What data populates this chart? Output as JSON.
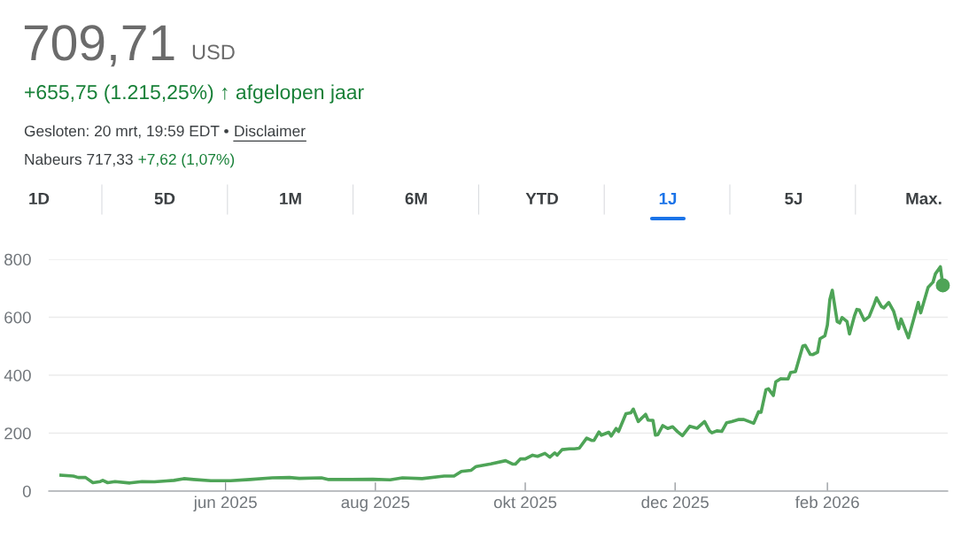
{
  "chart_data": {
    "type": "line",
    "title": "709,71",
    "annotations": [
      "USD",
      "+655,75 (1.215,25%) ↑ afgelopen jaar",
      "Gesloten: 20 mrt, 19:59 EDT •",
      "Disclaimer",
      "Nabeurs 717,33",
      "+7,62 (1,07%)",
      "1D",
      "5D",
      "1M",
      "6M",
      "YTD",
      "1J",
      "5J",
      "Max."
    ],
    "xlim": [
      "2025-03-21",
      "2026-03-22"
    ],
    "xticks": [
      {
        "value": "2025-06-01",
        "label": "jun 2025"
      },
      {
        "value": "2025-08-01",
        "label": "aug 2025"
      },
      {
        "value": "2025-10-01",
        "label": "okt 2025"
      },
      {
        "value": "2025-12-01",
        "label": "dec 2025"
      },
      {
        "value": "2026-02-01",
        "label": "feb 2026"
      }
    ],
    "ylim": [
      0,
      800
    ],
    "yticks": [
      0,
      200,
      400,
      600,
      800
    ],
    "grid": "y",
    "legend": false,
    "line_style": "solid",
    "series": [
      {
        "color": "#4ea457",
        "marker": "none",
        "x": [
          "2025-03-26",
          "2025-03-31",
          "2025-04-02",
          "2025-04-05",
          "2025-04-08",
          "2025-04-11",
          "2025-04-12",
          "2025-04-14",
          "2025-04-17",
          "2025-04-23",
          "2025-04-28",
          "2025-05-03",
          "2025-05-08",
          "2025-05-11",
          "2025-05-15",
          "2025-05-19",
          "2025-05-26",
          "2025-06-03",
          "2025-06-11",
          "2025-06-20",
          "2025-06-27",
          "2025-07-01",
          "2025-07-10",
          "2025-07-13",
          "2025-07-22",
          "2025-07-31",
          "2025-08-07",
          "2025-08-12",
          "2025-08-20",
          "2025-08-29",
          "2025-09-02",
          "2025-09-05",
          "2025-09-09",
          "2025-09-11",
          "2025-09-17",
          "2025-09-23",
          "2025-09-26",
          "2025-09-27",
          "2025-09-29",
          "2025-10-01",
          "2025-10-04",
          "2025-10-06",
          "2025-10-09",
          "2025-10-11",
          "2025-10-13",
          "2025-10-14",
          "2025-10-16",
          "2025-10-19",
          "2025-10-21",
          "2025-10-23",
          "2025-10-26",
          "2025-10-28",
          "2025-10-29",
          "2025-10-31",
          "2025-11-01",
          "2025-11-04",
          "2025-11-05",
          "2025-11-07",
          "2025-11-08",
          "2025-11-11",
          "2025-11-13",
          "2025-11-14",
          "2025-11-16",
          "2025-11-19",
          "2025-11-20",
          "2025-11-22",
          "2025-11-23",
          "2025-11-24",
          "2025-11-26",
          "2025-11-28",
          "2025-11-30",
          "2025-12-02",
          "2025-12-04",
          "2025-12-07",
          "2025-12-10",
          "2025-12-13",
          "2025-12-15",
          "2025-12-16",
          "2025-12-18",
          "2025-12-20",
          "2025-12-22",
          "2025-12-24",
          "2025-12-27",
          "2025-12-29",
          "2026-01-02",
          "2026-01-04",
          "2026-01-05",
          "2026-01-07",
          "2026-01-08",
          "2026-01-10",
          "2026-01-11",
          "2026-01-13",
          "2026-01-16",
          "2026-01-17",
          "2026-01-19",
          "2026-01-22",
          "2026-01-23",
          "2026-01-25",
          "2026-01-26",
          "2026-01-28",
          "2026-01-29",
          "2026-01-31",
          "2026-02-01",
          "2026-02-02",
          "2026-02-03",
          "2026-02-05",
          "2026-02-06",
          "2026-02-07",
          "2026-02-09",
          "2026-02-10",
          "2026-02-12",
          "2026-02-13",
          "2026-02-14",
          "2026-02-16",
          "2026-02-18",
          "2026-02-20",
          "2026-02-21",
          "2026-02-23",
          "2026-02-24",
          "2026-02-26",
          "2026-02-28",
          "2026-03-02",
          "2026-03-03",
          "2026-03-06",
          "2026-03-08",
          "2026-03-10",
          "2026-03-11",
          "2026-03-14",
          "2026-03-16",
          "2026-03-17",
          "2026-03-19",
          "2026-03-20"
        ],
        "values": [
          55,
          52,
          47,
          47,
          29,
          33,
          37,
          29,
          33,
          28,
          33,
          32,
          35,
          37,
          43,
          40,
          36,
          36,
          40,
          46,
          47,
          44,
          46,
          40,
          40,
          41,
          39,
          46,
          43,
          52,
          52,
          68,
          72,
          85,
          94,
          105,
          93,
          93,
          111,
          111,
          124,
          120,
          130,
          117,
          132,
          124,
          143,
          146,
          146,
          148,
          183,
          175,
          175,
          204,
          193,
          203,
          190,
          216,
          206,
          267,
          270,
          283,
          240,
          265,
          245,
          244,
          193,
          195,
          226,
          216,
          222,
          205,
          191,
          224,
          217,
          240,
          208,
          201,
          208,
          206,
          236,
          240,
          247,
          247,
          234,
          274,
          272,
          350,
          353,
          330,
          377,
          388,
          387,
          409,
          412,
          501,
          503,
          472,
          471,
          479,
          526,
          536,
          573,
          661,
          693,
          585,
          580,
          599,
          585,
          542,
          604,
          627,
          625,
          589,
          602,
          644,
          667,
          637,
          632,
          651,
          620,
          560,
          594,
          529,
          589,
          651,
          615,
          703,
          721,
          750,
          774,
          710
        ]
      },
      {
        "type": "scatter",
        "color": "#4ea457",
        "marker": "circle",
        "x": [
          "2026-03-20"
        ],
        "values": [
          710
        ]
      }
    ]
  }
}
